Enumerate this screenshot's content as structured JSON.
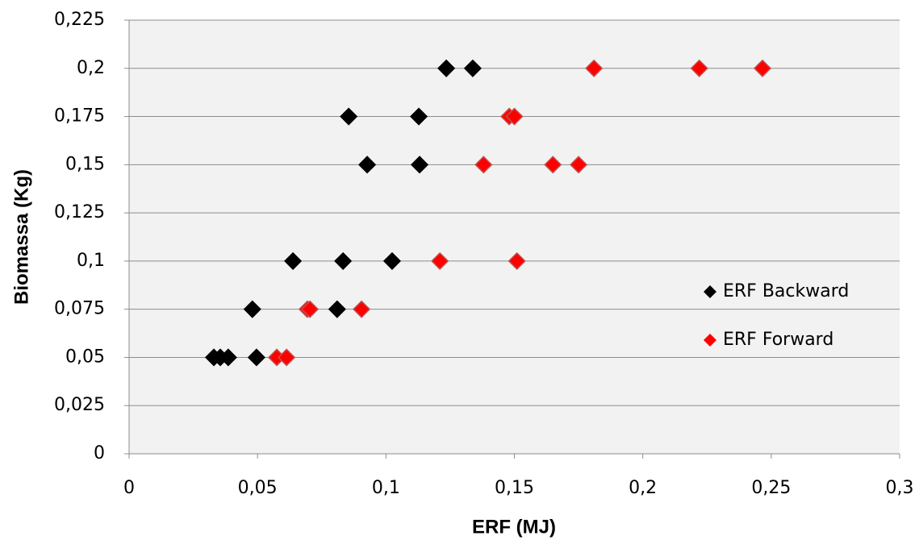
{
  "chart_data": {
    "type": "scatter",
    "x_label": "ERF (MJ)",
    "y_label": "Biomassa (Kg)",
    "xlim": [
      0,
      0.3
    ],
    "xticks": [
      0,
      {
        "value": 0.05,
        "label": "0,05"
      },
      {
        "value": 0.1,
        "label": "0,1"
      },
      {
        "value": 0.15,
        "label": "0,15"
      },
      {
        "value": 0.2,
        "label": "0,2"
      },
      {
        "value": 0.25,
        "label": "0,25"
      },
      {
        "value": 0.3,
        "label": "0,3"
      }
    ],
    "ylim": [
      0,
      0.225
    ],
    "yticks": [
      0,
      {
        "value": 0.025,
        "label": "0,025"
      },
      {
        "value": 0.05,
        "label": "0,05"
      },
      {
        "value": 0.075,
        "label": "0,075"
      },
      {
        "value": 0.1,
        "label": "0,1"
      },
      {
        "value": 0.125,
        "label": "0,125"
      },
      {
        "value": 0.15,
        "label": "0,15"
      },
      {
        "value": 0.175,
        "label": "0,175"
      },
      {
        "value": 0.2,
        "label": "0,2"
      },
      {
        "value": 0.225,
        "label": "0,225"
      }
    ],
    "grid": true,
    "legend": "right",
    "series": [
      {
        "name": "ERF Backward",
        "color": "#000000",
        "x": [
          0.1235,
          0.1338,
          0.0855,
          0.1128,
          0.0927,
          0.1131,
          0.0638,
          0.0833,
          0.1024,
          0.048,
          0.081,
          0.033,
          0.0355,
          0.0386,
          0.0496
        ],
        "values": [
          0.2,
          0.2,
          0.175,
          0.175,
          0.15,
          0.15,
          0.1,
          0.1,
          0.1,
          0.075,
          0.075,
          0.05,
          0.05,
          0.05,
          0.05
        ]
      },
      {
        "name": "ERF Forward",
        "color": "#ff0000",
        "x": [
          0.181,
          0.222,
          0.2466,
          0.148,
          0.15,
          0.138,
          0.165,
          0.175,
          0.121,
          0.151,
          0.0694,
          0.0704,
          0.0905,
          0.0575,
          0.0613
        ],
        "values": [
          0.2,
          0.2,
          0.2,
          0.175,
          0.175,
          0.15,
          0.15,
          0.15,
          0.1,
          0.1,
          0.075,
          0.075,
          0.075,
          0.05,
          0.05
        ]
      }
    ]
  }
}
